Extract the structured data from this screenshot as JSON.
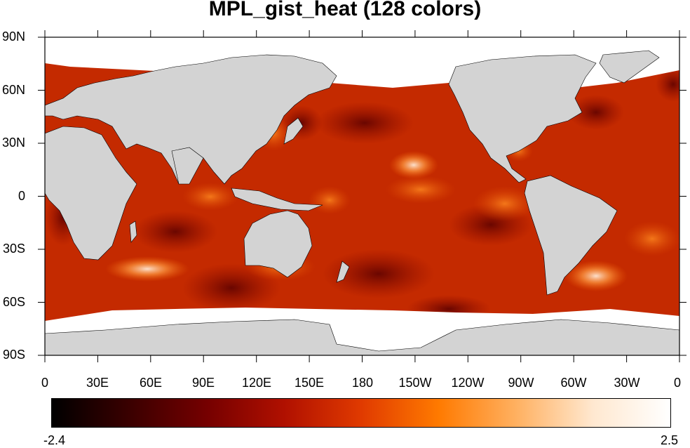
{
  "title": "MPL_gist_heat (128 colors)",
  "map": {
    "projection": "cylindrical-equidistant",
    "center_longitude": 180,
    "land_color": "#d3d3d3",
    "missing_color": "#ffffff",
    "features": [
      "Antarctic sea ice (no data)",
      "Arctic sea ice (no data)"
    ]
  },
  "y_ticks": [
    "90N",
    "60N",
    "30N",
    "0",
    "30S",
    "60S",
    "90S"
  ],
  "x_ticks": [
    "0",
    "30E",
    "60E",
    "90E",
    "120E",
    "150E",
    "180",
    "150W",
    "120W",
    "90W",
    "60W",
    "30W",
    "0"
  ],
  "colorbar": {
    "colormap": "MPL_gist_heat",
    "n_colors": 128,
    "min_label": "-2.4",
    "max_label": "2.5",
    "stops": [
      "#000000",
      "#3a0000",
      "#750000",
      "#b01000",
      "#e03a00",
      "#ff7a00",
      "#ffb060",
      "#ffe8d0",
      "#ffffff"
    ]
  }
}
